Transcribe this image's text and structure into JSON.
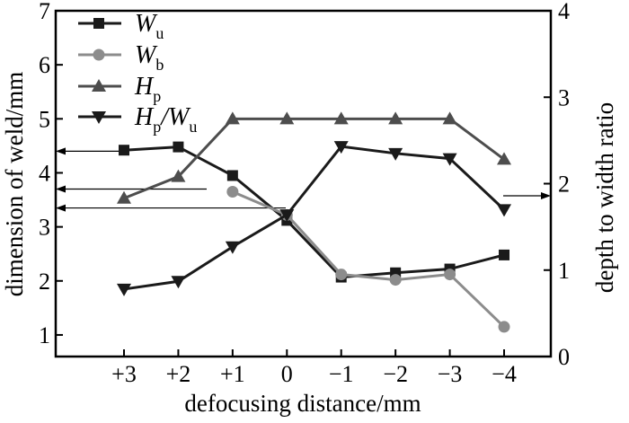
{
  "chart_data": {
    "type": "line",
    "xlabel": "defocusing distance/mm",
    "ylabel_left": "dimension of weld/mm",
    "ylabel_right": "depth to width ratio",
    "categories": [
      "+3",
      "+2",
      "+1",
      "0",
      "−1",
      "−2",
      "−3",
      "−4"
    ],
    "ylim_left": [
      0.6,
      7
    ],
    "ylim_right": [
      0,
      4
    ],
    "yticks_left": [
      1,
      2,
      3,
      4,
      5,
      6,
      7
    ],
    "yticks_right": [
      0,
      1,
      2,
      3,
      4
    ],
    "grid": false,
    "legend_position": "top-left",
    "series": [
      {
        "name": "Wu",
        "legend_main": "W",
        "legend_sub": "u",
        "axis": "left",
        "marker": "square",
        "color": "#1a1a1a",
        "values": [
          4.42,
          4.48,
          3.95,
          3.12,
          2.07,
          2.15,
          2.22,
          2.48
        ]
      },
      {
        "name": "Wb",
        "legend_main": "W",
        "legend_sub": "b",
        "axis": "left",
        "marker": "circle",
        "color": "#8c8c8c",
        "values": [
          null,
          null,
          3.65,
          3.22,
          2.12,
          2.02,
          2.12,
          1.15
        ]
      },
      {
        "name": "Hp",
        "legend_main": "H",
        "legend_sub": "p",
        "axis": "left",
        "marker": "triangle-up",
        "color": "#4d4d4d",
        "values": [
          3.53,
          3.93,
          5.0,
          5.0,
          5.0,
          5.0,
          5.0,
          4.25
        ]
      },
      {
        "name": "Hp/Wu",
        "legend_main": "H",
        "legend_sub": "p",
        "legend_main2": "/W",
        "legend_sub2": "u",
        "axis": "right",
        "marker": "triangle-down",
        "color": "#1a1a1a",
        "values": [
          0.78,
          0.87,
          1.27,
          1.64,
          2.43,
          2.35,
          2.29,
          1.7
        ]
      }
    ]
  },
  "colors": {
    "frame": "#000000",
    "background": "#ffffff"
  }
}
